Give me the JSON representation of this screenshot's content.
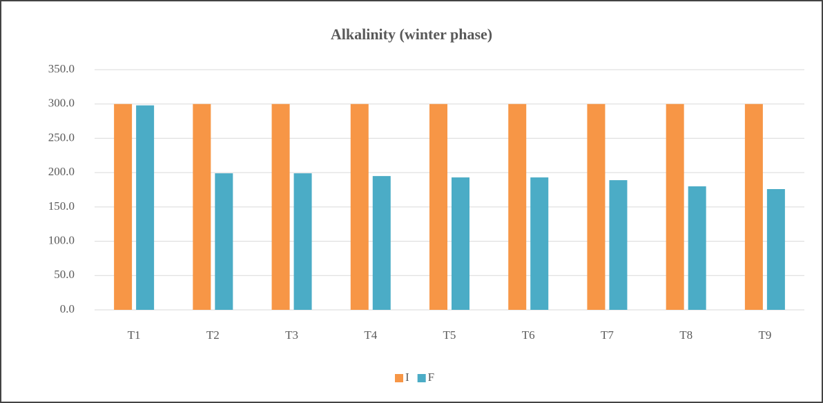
{
  "chart_data": {
    "type": "bar",
    "title": "Alkalinity (winter phase)",
    "categories": [
      "T1",
      "T2",
      "T3",
      "T4",
      "T5",
      "T6",
      "T7",
      "T8",
      "T9"
    ],
    "series": [
      {
        "name": "I",
        "color": "#f79646",
        "values": [
          300,
          300,
          300,
          300,
          300,
          300,
          300,
          300,
          300
        ]
      },
      {
        "name": "F",
        "color": "#4bacc6",
        "values": [
          298,
          199,
          199,
          195,
          193,
          193,
          189,
          180,
          176
        ]
      }
    ],
    "ylim": [
      0,
      350
    ],
    "yticks": [
      {
        "value": 0,
        "label": "0.0"
      },
      {
        "value": 50,
        "label": "50.0"
      },
      {
        "value": 100,
        "label": "100.0"
      },
      {
        "value": 150,
        "label": "150.0"
      },
      {
        "value": 200,
        "label": "200.0"
      },
      {
        "value": 250,
        "label": "250.0"
      },
      {
        "value": 300,
        "label": "300.0"
      },
      {
        "value": 350,
        "label": "350.0"
      }
    ],
    "grid": true,
    "legend": "bottom"
  }
}
